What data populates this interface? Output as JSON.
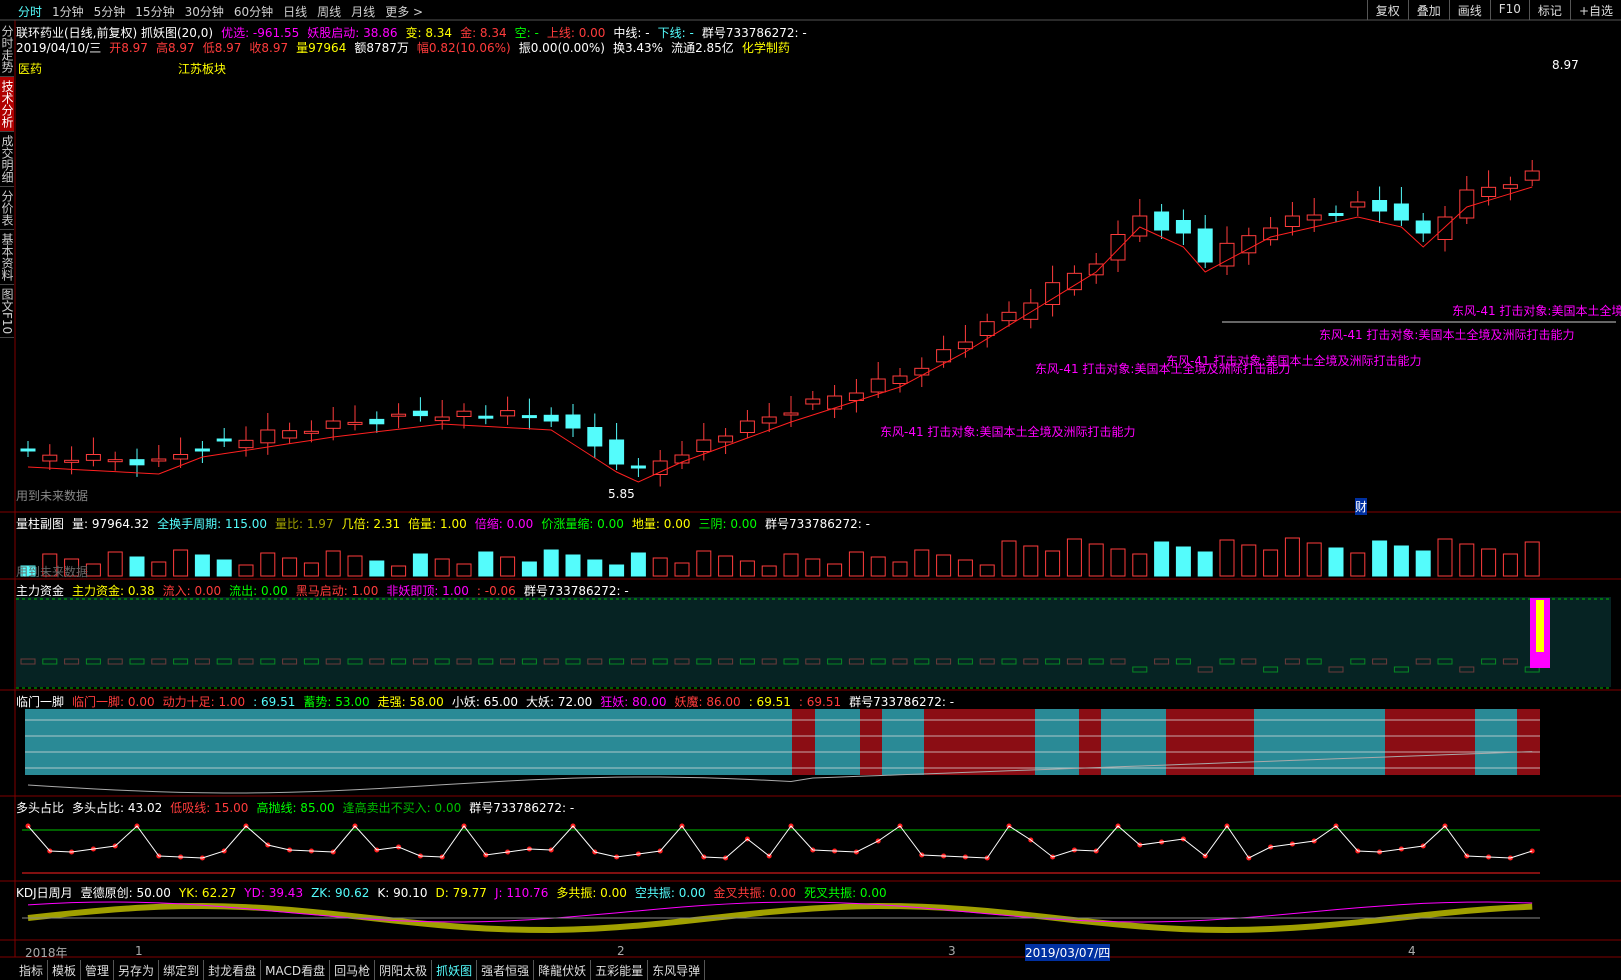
{
  "toolbar": {
    "periods": [
      "分时",
      "1分钟",
      "5分钟",
      "15分钟",
      "30分钟",
      "60分钟",
      "日线",
      "周线",
      "月线",
      "更多 >"
    ],
    "buttons": [
      "复权",
      "叠加",
      "画线",
      "F10",
      "标记",
      "+自选"
    ]
  },
  "sidebar": [
    "分时走势",
    "技术分析",
    "成交明细",
    "分价表",
    "基本资料",
    "图文F10"
  ],
  "main": {
    "header1": [
      {
        "text": "联环药业(日线,前复权) 抓妖图(20,0)",
        "color": "#ffffff"
      },
      {
        "text": "优选: -961.55",
        "color": "#ff00ff"
      },
      {
        "text": "妖股启动: 38.86",
        "color": "#ff00ff"
      },
      {
        "text": "变: 8.34",
        "color": "#ffff00"
      },
      {
        "text": "金: 8.34",
        "color": "#ff3c3c"
      },
      {
        "text": "空: -",
        "color": "#00ff00"
      },
      {
        "text": "上线: 0.00",
        "color": "#ff3c3c"
      },
      {
        "text": "中线: -",
        "color": "#ffffff"
      },
      {
        "text": "下线: -",
        "color": "#54fcfc"
      },
      {
        "text": "群号733786272: -",
        "color": "#ffffff"
      }
    ],
    "header2": [
      {
        "text": "2019/04/10/三",
        "color": "#ffffff"
      },
      {
        "text": "开8.97",
        "color": "#ff3c3c"
      },
      {
        "text": "高8.97",
        "color": "#ff3c3c"
      },
      {
        "text": "低8.97",
        "color": "#ff3c3c"
      },
      {
        "text": "收8.97",
        "color": "#ff3c3c"
      },
      {
        "text": "量97964",
        "color": "#ffff00"
      },
      {
        "text": "额8787万",
        "color": "#ffffff"
      },
      {
        "text": "幅0.82(10.06%)",
        "color": "#ff3c3c"
      },
      {
        "text": "振0.00(0.00%)",
        "color": "#ffffff"
      },
      {
        "text": "换3.43%",
        "color": "#ffffff"
      },
      {
        "text": "流通2.85亿",
        "color": "#ffffff"
      },
      {
        "text": "化学制药",
        "color": "#ffff00"
      }
    ],
    "sector1": "医药",
    "sector2": "江苏板块",
    "high_label": "8.97",
    "low_label": "5.85",
    "future_note": "用到未来数据",
    "signal_texts": [
      "东风-41 打击对象:美国本土全境及洲际打击能力",
      "东风-41 打击对象:美国本土全境及洲际打击能力",
      "东风-41 打击对象:美国本土全境及洲际打击能力",
      "东风-41 打击对象:美国本土全境及洲际打击能力",
      "东风-41 打击对象:美国本土全境"
    ],
    "cai": "财"
  },
  "panes": [
    {
      "header": [
        {
          "text": "量柱副图",
          "color": "#ffffff"
        },
        {
          "text": "量: 97964.32",
          "color": "#ffffff"
        },
        {
          "text": "全换手周期: 115.00",
          "color": "#54fcfc"
        },
        {
          "text": "量比: 1.97",
          "color": "#a0a000"
        },
        {
          "text": "几倍: 2.31",
          "color": "#ffff00"
        },
        {
          "text": "倍量: 1.00",
          "color": "#ffff00"
        },
        {
          "text": "倍缩: 0.00",
          "color": "#ff00ff"
        },
        {
          "text": "价涨量缩: 0.00",
          "color": "#00ff00"
        },
        {
          "text": "地量: 0.00",
          "color": "#ffff00"
        },
        {
          "text": "三阴: 0.00",
          "color": "#00ff00"
        },
        {
          "text": "群号733786272: -",
          "color": "#ffffff"
        }
      ],
      "note": "用到未来数据"
    },
    {
      "header": [
        {
          "text": "主力资金",
          "color": "#ffffff"
        },
        {
          "text": "主力资金: 0.38",
          "color": "#ffff00"
        },
        {
          "text": "流入: 0.00",
          "color": "#ff3c3c"
        },
        {
          "text": "流出: 0.00",
          "color": "#00ff00"
        },
        {
          "text": "黑马启动: 1.00",
          "color": "#ff3c3c"
        },
        {
          "text": "非妖即顶: 1.00",
          "color": "#ff00ff"
        },
        {
          "text": ": -0.06",
          "color": "#ff3c3c"
        },
        {
          "text": "群号733786272: -",
          "color": "#ffffff"
        }
      ]
    },
    {
      "header": [
        {
          "text": "临门一脚",
          "color": "#ffffff"
        },
        {
          "text": "临门一脚: 0.00",
          "color": "#ff3c3c"
        },
        {
          "text": "动力十足: 1.00",
          "color": "#ff3c3c"
        },
        {
          "text": ": 69.51",
          "color": "#54fcfc"
        },
        {
          "text": "蓄势: 53.00",
          "color": "#00ff00"
        },
        {
          "text": "走强: 58.00",
          "color": "#ffff00"
        },
        {
          "text": "小妖: 65.00",
          "color": "#ffffff"
        },
        {
          "text": "大妖: 72.00",
          "color": "#ffffff"
        },
        {
          "text": "狂妖: 80.00",
          "color": "#ff00ff"
        },
        {
          "text": "妖魔: 86.00",
          "color": "#ff3c3c"
        },
        {
          "text": ": 69.51",
          "color": "#ffff00"
        },
        {
          "text": ": 69.51",
          "color": "#ff3c3c"
        },
        {
          "text": "群号733786272: -",
          "color": "#ffffff"
        }
      ]
    },
    {
      "header": [
        {
          "text": "多头占比",
          "color": "#ffffff"
        },
        {
          "text": "多头占比: 43.02",
          "color": "#ffffff"
        },
        {
          "text": "低吸线: 15.00",
          "color": "#ff3c3c"
        },
        {
          "text": "高抛线: 85.00",
          "color": "#00ff00"
        },
        {
          "text": "逢高卖出不买入: 0.00",
          "color": "#00c000"
        },
        {
          "text": "群号733786272: -",
          "color": "#ffffff"
        }
      ]
    },
    {
      "header": [
        {
          "text": "KDJ日周月",
          "color": "#ffffff"
        },
        {
          "text": "壹德原创: 50.00",
          "color": "#ffffff"
        },
        {
          "text": "YK: 62.27",
          "color": "#ffff00"
        },
        {
          "text": "YD: 39.43",
          "color": "#ff00ff"
        },
        {
          "text": "ZK: 90.62",
          "color": "#54fcfc"
        },
        {
          "text": "K: 90.10",
          "color": "#ffffff"
        },
        {
          "text": "D: 79.77",
          "color": "#ffff00"
        },
        {
          "text": "J: 110.76",
          "color": "#ff00ff"
        },
        {
          "text": "多共振: 0.00",
          "color": "#ffff00"
        },
        {
          "text": "空共振: 0.00",
          "color": "#54fcfc"
        },
        {
          "text": "金叉共振: 0.00",
          "color": "#ff3c3c"
        },
        {
          "text": "死叉共振: 0.00",
          "color": "#00ff00"
        }
      ]
    }
  ],
  "date_axis": [
    "2018年",
    "1",
    "2",
    "3",
    "2019/03/07/四",
    "4"
  ],
  "bottom_tabs": [
    "指标",
    "模板",
    "管理",
    "另存为",
    "绑定到",
    "封龙看盘",
    "MACD看盘",
    "回马枪",
    "阴阳太极",
    "抓妖图",
    "强者恒强",
    "降龍伏妖",
    "五彩能量",
    "东风导弹"
  ]
}
